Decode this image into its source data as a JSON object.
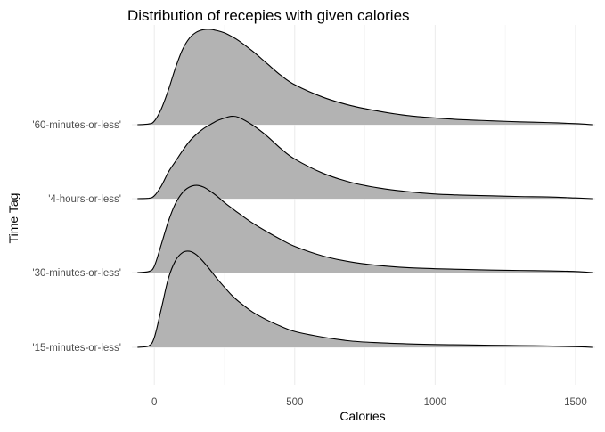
{
  "chart_data": {
    "type": "area",
    "subtype": "ridgeline density",
    "title": "Distribution of recepies with given calories",
    "xlabel": "Calories",
    "ylabel": "Time Tag",
    "xlim": [
      -80,
      1570
    ],
    "x_ticks": [
      0,
      500,
      1000,
      1500
    ],
    "grid": true,
    "fill_color": "#b3b3b3",
    "line_color": "#000000",
    "categories": [
      "'15-minutes-or-less'",
      "'30-minutes-or-less'",
      "'4-hours-or-less'",
      "'60-minutes-or-less'"
    ],
    "x": [
      -60,
      -20,
      0,
      25,
      50,
      75,
      100,
      125,
      150,
      175,
      200,
      225,
      250,
      275,
      300,
      350,
      400,
      450,
      500,
      600,
      700,
      800,
      900,
      1000,
      1100,
      1200,
      1300,
      1400,
      1500,
      1560
    ],
    "series": [
      {
        "name": "'15-minutes-or-less'",
        "values": [
          0.0,
          0.04,
          0.28,
          1.1,
          1.95,
          2.45,
          2.68,
          2.72,
          2.62,
          2.42,
          2.18,
          1.93,
          1.7,
          1.48,
          1.3,
          1.0,
          0.78,
          0.6,
          0.45,
          0.29,
          0.18,
          0.13,
          0.1,
          0.08,
          0.07,
          0.06,
          0.05,
          0.04,
          0.02,
          0.0
        ]
      },
      {
        "name": "'30-minutes-or-less'",
        "values": [
          0.0,
          0.03,
          0.18,
          0.8,
          1.45,
          1.95,
          2.26,
          2.42,
          2.47,
          2.42,
          2.3,
          2.15,
          1.98,
          1.83,
          1.68,
          1.4,
          1.16,
          0.94,
          0.74,
          0.47,
          0.3,
          0.2,
          0.14,
          0.11,
          0.09,
          0.07,
          0.06,
          0.05,
          0.03,
          0.0
        ]
      },
      {
        "name": "'4-hours-or-less'",
        "values": [
          0.0,
          0.01,
          0.08,
          0.36,
          0.75,
          1.05,
          1.35,
          1.62,
          1.82,
          1.98,
          2.1,
          2.21,
          2.28,
          2.33,
          2.3,
          2.08,
          1.78,
          1.42,
          1.12,
          0.72,
          0.46,
          0.3,
          0.2,
          0.13,
          0.1,
          0.08,
          0.06,
          0.05,
          0.02,
          0.0
        ]
      },
      {
        "name": "'60-minutes-or-less'",
        "values": [
          0.0,
          0.02,
          0.1,
          0.45,
          0.98,
          1.6,
          2.12,
          2.45,
          2.62,
          2.69,
          2.7,
          2.66,
          2.6,
          2.5,
          2.38,
          2.08,
          1.74,
          1.4,
          1.13,
          0.78,
          0.54,
          0.38,
          0.26,
          0.19,
          0.14,
          0.11,
          0.08,
          0.06,
          0.03,
          0.0
        ]
      }
    ]
  }
}
